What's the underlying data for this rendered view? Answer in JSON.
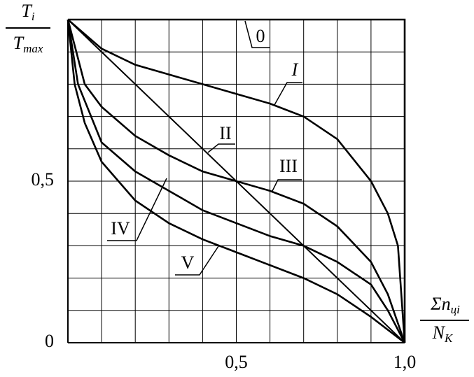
{
  "chart_data": {
    "type": "line",
    "ylabel": {
      "top": "T",
      "top_sub": "i",
      "bottom": "T",
      "bottom_sub": "max"
    },
    "xlabel": {
      "top": "Σn",
      "top_sub": "цi",
      "bottom": "N",
      "bottom_sub": "K"
    },
    "xlim": [
      0,
      1
    ],
    "ylim": [
      0,
      1
    ],
    "xticks": [
      {
        "value": 0.5,
        "label": "0,5"
      },
      {
        "value": 1.0,
        "label": "1,0"
      }
    ],
    "yticks": [
      0,
      {
        "value": 0.5,
        "label": "0,5"
      }
    ],
    "xgrid": [
      0.1,
      0.2,
      0.3,
      0.4,
      0.5,
      0.6,
      0.7,
      0.8,
      0.9,
      1.0
    ],
    "ygrid": [
      0.1,
      0.2,
      0.3,
      0.4,
      0.5,
      0.6,
      0.7,
      0.8,
      0.9,
      1.0
    ],
    "grid": true,
    "series": [
      {
        "name": "0",
        "color": "#000000",
        "x": [
          0,
          1,
          1
        ],
        "values": [
          1,
          1,
          0
        ]
      },
      {
        "name": "I",
        "color": "#000000",
        "x": [
          0,
          0.1,
          0.2,
          0.3,
          0.4,
          0.5,
          0.6,
          0.7,
          0.8,
          0.9,
          0.95,
          0.98,
          1
        ],
        "values": [
          1,
          0.91,
          0.86,
          0.83,
          0.8,
          0.77,
          0.74,
          0.7,
          0.63,
          0.5,
          0.4,
          0.3,
          0
        ]
      },
      {
        "name": "II",
        "color": "#000000",
        "x": [
          0,
          1
        ],
        "values": [
          1,
          0
        ]
      },
      {
        "name": "III",
        "color": "#000000",
        "x": [
          0,
          0.05,
          0.1,
          0.2,
          0.3,
          0.4,
          0.5,
          0.6,
          0.7,
          0.8,
          0.9,
          0.95,
          1
        ],
        "values": [
          1,
          0.8,
          0.73,
          0.64,
          0.58,
          0.53,
          0.5,
          0.47,
          0.43,
          0.36,
          0.25,
          0.15,
          0
        ]
      },
      {
        "name": "IV",
        "color": "#000000",
        "x": [
          0,
          0.03,
          0.1,
          0.2,
          0.3,
          0.4,
          0.5,
          0.6,
          0.7,
          0.8,
          0.9,
          0.95,
          1
        ],
        "values": [
          1,
          0.8,
          0.62,
          0.53,
          0.47,
          0.41,
          0.37,
          0.33,
          0.3,
          0.25,
          0.18,
          0.1,
          0
        ]
      },
      {
        "name": "V",
        "color": "#000000",
        "x": [
          0,
          0.02,
          0.05,
          0.1,
          0.2,
          0.3,
          0.4,
          0.5,
          0.6,
          0.7,
          0.8,
          0.9,
          1
        ],
        "values": [
          1,
          0.8,
          0.68,
          0.56,
          0.44,
          0.37,
          0.32,
          0.28,
          0.24,
          0.2,
          0.15,
          0.08,
          0
        ]
      }
    ]
  }
}
